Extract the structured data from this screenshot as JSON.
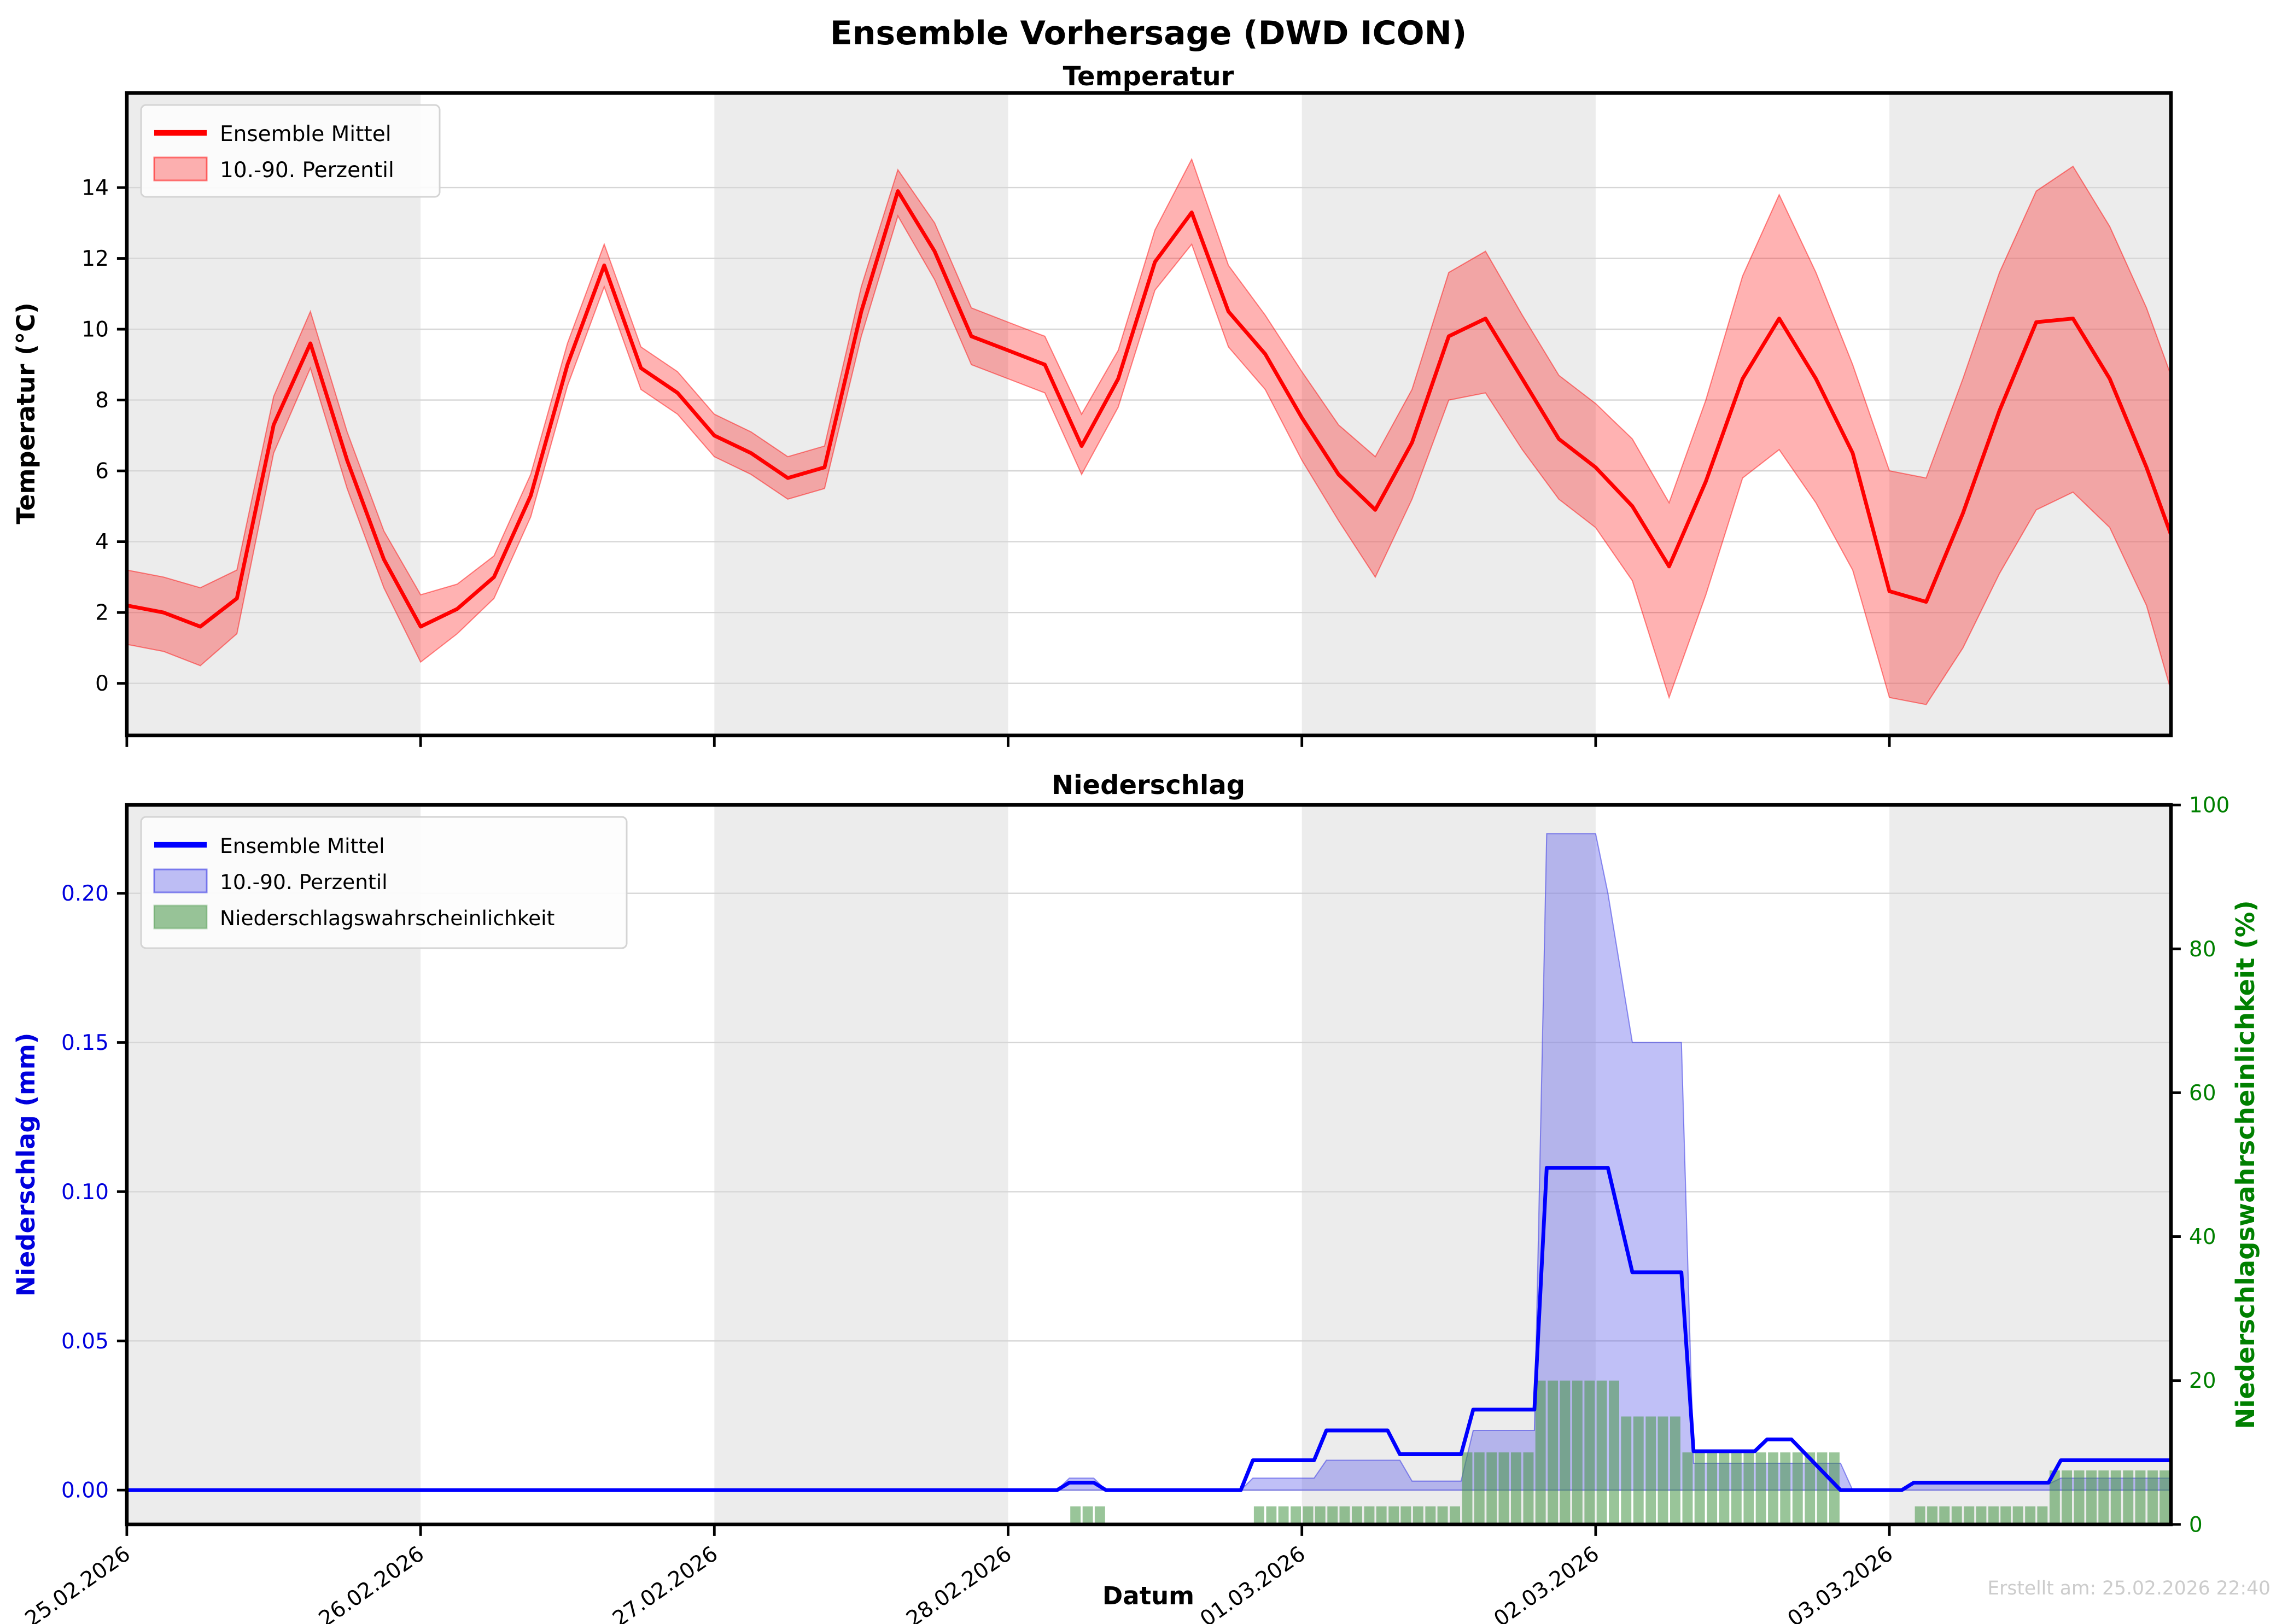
{
  "title": "Ensemble Vorhersage (DWD ICON)",
  "footer": {
    "xlabel": "Datum",
    "created": "Erstellt am: 25.02.2026 22:40"
  },
  "colors": {
    "temp_line": "#ff0000",
    "temp_band_fill": "rgba(255,0,0,0.30)",
    "temp_band_edge": "rgba(255,0,0,0.45)",
    "precip_line": "#0000ff",
    "precip_band_fill": "rgba(90,90,235,0.38)",
    "precip_band_edge": "rgba(60,60,230,0.55)",
    "prob_bar_fill": "rgba(70,150,70,0.55)",
    "day_band_gray": "#ececec",
    "grid": "#d6d6d6",
    "spine": "#000000",
    "left_axis2_color": "#0000dd",
    "right_axis2_color": "#008000",
    "timestamp_color": "#cccccc",
    "legend_bg": "#fdfdfd",
    "legend_border": "#d4d4d4"
  },
  "legend_temp": {
    "mean": "Ensemble Mittel",
    "band": "10.-90. Perzentil"
  },
  "legend_precip": {
    "mean": "Ensemble Mittel",
    "band": "10.-90. Perzentil",
    "prob": "Niederschlagswahrscheinlichkeit"
  },
  "chart_data": [
    {
      "type": "line",
      "title": "Temperatur",
      "ylabel": "Temperatur (°C)",
      "ylim": [
        -1.47,
        16.67
      ],
      "yticks": [
        0,
        2,
        4,
        6,
        8,
        10,
        12,
        14
      ],
      "grid": true,
      "legend_position": "upper left",
      "x_hours": [
        0,
        3,
        6,
        9,
        12,
        15,
        18,
        21,
        24,
        27,
        30,
        33,
        36,
        39,
        42,
        45,
        48,
        51,
        54,
        57,
        60,
        63,
        66,
        69,
        72,
        75,
        78,
        81,
        84,
        87,
        90,
        93,
        96,
        99,
        102,
        105,
        108,
        111,
        114,
        117,
        120,
        123,
        126,
        129,
        132,
        135,
        138,
        141,
        144,
        147,
        150,
        153,
        156,
        159,
        162,
        165,
        167
      ],
      "series": [
        {
          "name": "Ensemble Mittel",
          "values": [
            2.2,
            2.0,
            1.6,
            2.4,
            7.3,
            9.6,
            6.3,
            3.5,
            1.6,
            2.1,
            3.0,
            5.3,
            9.0,
            11.8,
            8.9,
            8.2,
            7.0,
            6.5,
            5.8,
            6.1,
            10.5,
            13.9,
            12.2,
            9.8,
            9.4,
            9.0,
            6.7,
            8.6,
            11.9,
            13.3,
            10.5,
            9.3,
            7.5,
            5.9,
            4.9,
            6.8,
            9.8,
            10.3,
            8.6,
            6.9,
            6.1,
            5.0,
            3.3,
            5.7,
            8.6,
            10.3,
            8.6,
            6.5,
            2.6,
            2.3,
            4.8,
            7.7,
            10.2,
            10.3,
            8.6,
            6.1,
            4.2
          ]
        },
        {
          "name": "10. Perzentil",
          "values": [
            1.1,
            0.9,
            0.5,
            1.4,
            6.5,
            8.9,
            5.5,
            2.7,
            0.6,
            1.4,
            2.4,
            4.7,
            8.4,
            11.2,
            8.3,
            7.6,
            6.4,
            5.9,
            5.2,
            5.5,
            9.8,
            13.2,
            11.4,
            9.0,
            8.6,
            8.2,
            5.9,
            7.8,
            11.1,
            12.4,
            9.5,
            8.3,
            6.3,
            4.6,
            3.0,
            5.2,
            8.0,
            8.2,
            6.6,
            5.2,
            4.4,
            2.9,
            -0.4,
            2.5,
            5.8,
            6.6,
            5.1,
            3.2,
            -0.4,
            -0.6,
            1.0,
            3.1,
            4.9,
            5.4,
            4.4,
            2.2,
            -0.2
          ]
        },
        {
          "name": "90. Perzentil",
          "values": [
            3.2,
            3.0,
            2.7,
            3.2,
            8.1,
            10.5,
            7.1,
            4.3,
            2.5,
            2.8,
            3.6,
            5.9,
            9.6,
            12.4,
            9.5,
            8.8,
            7.6,
            7.1,
            6.4,
            6.7,
            11.2,
            14.5,
            13.0,
            10.6,
            10.2,
            9.8,
            7.6,
            9.4,
            12.8,
            14.8,
            11.8,
            10.4,
            8.8,
            7.3,
            6.4,
            8.3,
            11.6,
            12.2,
            10.4,
            8.7,
            7.9,
            6.9,
            5.1,
            8.0,
            11.5,
            13.8,
            11.6,
            9.0,
            6.0,
            5.8,
            8.6,
            11.6,
            13.9,
            14.6,
            12.9,
            10.6,
            8.7
          ]
        }
      ]
    },
    {
      "type": "line+bar",
      "title": "Niederschlag",
      "ylabel_left": "Niederschlag (mm)",
      "ylabel_right": "Niederschlagswahrscheinlichkeit (%)",
      "ylim_left": [
        -0.0115,
        0.2296
      ],
      "yticks_left": [
        "0.00",
        "0.05",
        "0.10",
        "0.15",
        "0.20"
      ],
      "ylim_right": [
        0,
        100
      ],
      "yticks_right": [
        0,
        20,
        40,
        60,
        80,
        100
      ],
      "grid": true,
      "legend_position": "upper left",
      "mean_steps_mm": [
        [
          0,
          0
        ],
        [
          76,
          0
        ],
        [
          77,
          0.0025
        ],
        [
          79,
          0.0025
        ],
        [
          80,
          0
        ],
        [
          91,
          0
        ],
        [
          92,
          0.01
        ],
        [
          97,
          0.01
        ],
        [
          98,
          0.02
        ],
        [
          103,
          0.02
        ],
        [
          104,
          0.012
        ],
        [
          109,
          0.012
        ],
        [
          110,
          0.027
        ],
        [
          115,
          0.027
        ],
        [
          116,
          0.108
        ],
        [
          121,
          0.108
        ],
        [
          123,
          0.073
        ],
        [
          127,
          0.073
        ],
        [
          128,
          0.013
        ],
        [
          133,
          0.013
        ],
        [
          134,
          0.017
        ],
        [
          136,
          0.017
        ],
        [
          140,
          0.0
        ],
        [
          145,
          0.0
        ],
        [
          146,
          0.0025
        ],
        [
          157,
          0.0025
        ],
        [
          158,
          0.01
        ],
        [
          167,
          0.01
        ]
      ],
      "p90_steps_mm": [
        [
          0,
          0
        ],
        [
          76,
          0
        ],
        [
          77,
          0.004
        ],
        [
          79,
          0.004
        ],
        [
          80,
          0
        ],
        [
          91,
          0
        ],
        [
          92,
          0.004
        ],
        [
          97,
          0.004
        ],
        [
          98,
          0.01
        ],
        [
          104,
          0.01
        ],
        [
          105,
          0.003
        ],
        [
          109,
          0.003
        ],
        [
          110,
          0.02
        ],
        [
          115,
          0.02
        ],
        [
          116,
          0.22
        ],
        [
          120,
          0.22
        ],
        [
          121,
          0.2
        ],
        [
          123,
          0.15
        ],
        [
          127,
          0.15
        ],
        [
          128,
          0.009
        ],
        [
          140,
          0.009
        ],
        [
          141,
          0.0
        ],
        [
          145,
          0.0
        ],
        [
          146,
          0.002
        ],
        [
          157,
          0.002
        ],
        [
          158,
          0.004
        ],
        [
          167,
          0.004
        ]
      ],
      "prob_bars_pct": [
        [
          77,
          80,
          2.5
        ],
        [
          92,
          109,
          2.5
        ],
        [
          109,
          115,
          10
        ],
        [
          115,
          122,
          20
        ],
        [
          122,
          127,
          15
        ],
        [
          127,
          140,
          10
        ],
        [
          146,
          157,
          2.5
        ],
        [
          157,
          167,
          7.5
        ]
      ]
    }
  ],
  "x_axis": {
    "label": "Datum",
    "total_hours": 167,
    "tick_hours": [
      0,
      24,
      48,
      72,
      96,
      120,
      144
    ],
    "tick_labels": [
      "25.02.2026",
      "26.02.2026",
      "27.02.2026",
      "28.02.2026",
      "01.03.2026",
      "02.03.2026",
      "03.03.2026"
    ],
    "gray_day_bands_hours": [
      [
        0,
        24
      ],
      [
        48,
        72
      ],
      [
        96,
        120
      ],
      [
        144,
        167
      ]
    ]
  }
}
